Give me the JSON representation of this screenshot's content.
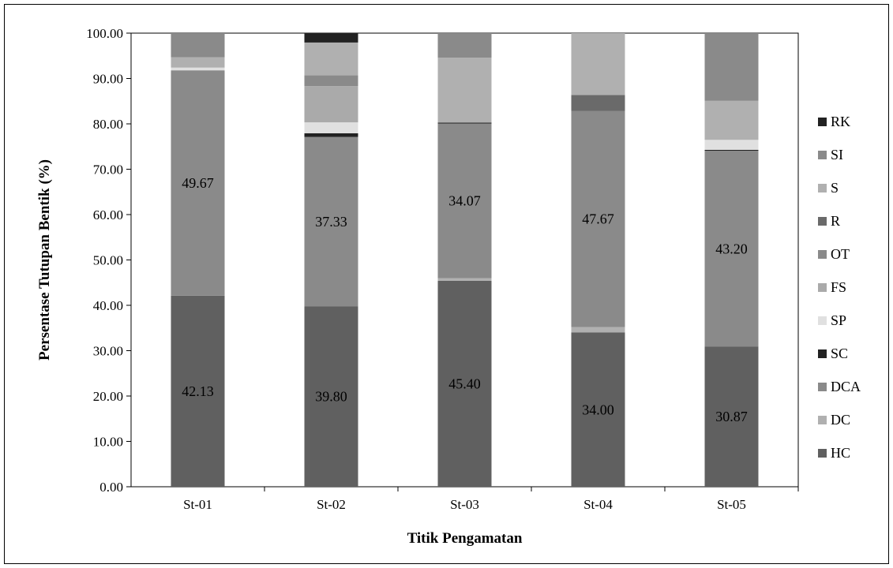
{
  "chart_data": {
    "type": "bar",
    "stacked": true,
    "title": "",
    "xlabel": "Titik Pengamatan",
    "ylabel": "Persentase Tutupan Bentik (%)",
    "ylim": [
      0,
      100
    ],
    "y_ticks": [
      "0.00",
      "10.00",
      "20.00",
      "30.00",
      "40.00",
      "50.00",
      "60.00",
      "70.00",
      "80.00",
      "90.00",
      "100.00"
    ],
    "grid": false,
    "legend_position": "right",
    "categories": [
      "St-01",
      "St-02",
      "St-03",
      "St-04",
      "St-05"
    ],
    "series": [
      {
        "name": "HC",
        "color": "#606060",
        "values": [
          42.13,
          39.8,
          45.4,
          34.0,
          30.87
        ]
      },
      {
        "name": "DC",
        "color": "#b0b0b0",
        "values": [
          0.0,
          0.0,
          0.6,
          1.2,
          0.0
        ]
      },
      {
        "name": "DCA",
        "color": "#8a8a8a",
        "values": [
          49.67,
          37.33,
          34.07,
          47.67,
          43.2
        ]
      },
      {
        "name": "SC",
        "color": "#222222",
        "values": [
          0.0,
          0.8,
          0.2,
          0.0,
          0.2
        ]
      },
      {
        "name": "SP",
        "color": "#e0e0e0",
        "values": [
          0.6,
          2.4,
          0.0,
          0.0,
          2.2
        ]
      },
      {
        "name": "FS",
        "color": "#aaaaaa",
        "values": [
          0.0,
          8.0,
          0.0,
          0.0,
          0.0
        ]
      },
      {
        "name": "OT",
        "color": "#8a8a8a",
        "values": [
          0.0,
          2.4,
          0.0,
          0.0,
          0.0
        ]
      },
      {
        "name": "R",
        "color": "#6a6a6a",
        "values": [
          0.0,
          0.0,
          0.0,
          3.5,
          0.0
        ]
      },
      {
        "name": "S",
        "color": "#b0b0b0",
        "values": [
          2.3,
          7.2,
          14.3,
          13.63,
          8.6
        ]
      },
      {
        "name": "SI",
        "color": "#8a8a8a",
        "values": [
          5.3,
          0.0,
          5.43,
          0.0,
          14.93
        ]
      },
      {
        "name": "RK",
        "color": "#222222",
        "values": [
          0.0,
          2.07,
          0.0,
          0.0,
          0.0
        ]
      }
    ],
    "data_labels": [
      {
        "series": "HC",
        "values": [
          "42.13",
          "39.80",
          "45.40",
          "34.00",
          "30.87"
        ]
      },
      {
        "series": "DCA",
        "values": [
          "49.67",
          "37.33",
          "34.07",
          "47.67",
          "43.20"
        ]
      }
    ]
  }
}
